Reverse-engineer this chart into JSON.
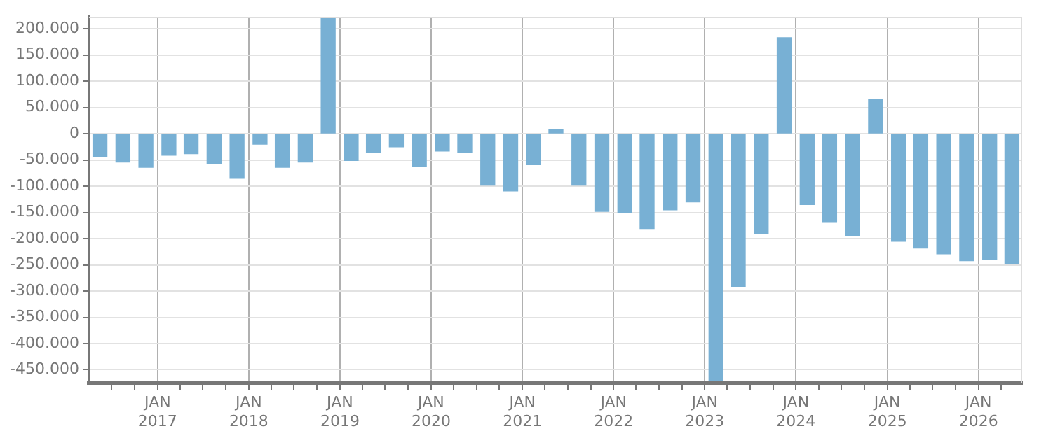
{
  "chart_data": {
    "type": "bar",
    "x": [
      "2016-05-15",
      "2016-08-15",
      "2016-11-15",
      "2017-02-15",
      "2017-05-15",
      "2017-08-15",
      "2017-11-15",
      "2018-02-15",
      "2018-05-15",
      "2018-08-15",
      "2018-11-15",
      "2019-02-15",
      "2019-05-15",
      "2019-08-15",
      "2019-11-15",
      "2020-02-15",
      "2020-05-15",
      "2020-08-15",
      "2020-11-15",
      "2021-02-15",
      "2021-05-15",
      "2021-08-15",
      "2021-11-15",
      "2022-02-15",
      "2022-05-15",
      "2022-08-15",
      "2022-11-15",
      "2023-02-15",
      "2023-05-15",
      "2023-08-15",
      "2023-11-15",
      "2024-02-15",
      "2024-05-15",
      "2024-08-15",
      "2024-11-15",
      "2025-02-15",
      "2025-05-15",
      "2025-08-15",
      "2025-11-15",
      "2026-02-15",
      "2026-05-15"
    ],
    "values": [
      -43000,
      -54000,
      -64000,
      -41000,
      -38000,
      -57000,
      -85000,
      -20000,
      -64000,
      -54000,
      220000,
      -51000,
      -36000,
      -25000,
      -62000,
      -33000,
      -36000,
      -98000,
      -109000,
      -59000,
      8000,
      -98000,
      -148000,
      -150000,
      -182000,
      -145000,
      -130000,
      -470000,
      -291000,
      -190000,
      183000,
      -135000,
      -169000,
      -195000,
      65000,
      -205000,
      -218000,
      -229000,
      -242000,
      -239000,
      -247000
    ],
    "color": "#78b0d4",
    "ylim": [
      -475000,
      223000
    ],
    "yticks": [
      {
        "value": -450000,
        "label": "-450.000"
      },
      {
        "value": -400000,
        "label": "-400.000"
      },
      {
        "value": -350000,
        "label": "-350.000"
      },
      {
        "value": -300000,
        "label": "-300.000"
      },
      {
        "value": -250000,
        "label": "-250.000"
      },
      {
        "value": -200000,
        "label": "-200.000"
      },
      {
        "value": -150000,
        "label": "-150.000"
      },
      {
        "value": -100000,
        "label": "-100.000"
      },
      {
        "value": -50000,
        "label": "-50.000"
      },
      0,
      {
        "value": 50000,
        "label": "50.000"
      },
      {
        "value": 100000,
        "label": "100.000"
      },
      {
        "value": 150000,
        "label": "150.000"
      },
      {
        "value": 200000,
        "label": "200.000"
      }
    ],
    "xlim": [
      "2016-04-01",
      "2026-06-25"
    ],
    "xticks": [
      {
        "value": "2016-07-01",
        "label": null
      },
      {
        "value": "2016-10-01",
        "label": null
      },
      {
        "value": "2017-01-01",
        "label": "JAN 2017"
      },
      {
        "value": "2017-04-01",
        "label": null
      },
      {
        "value": "2017-07-01",
        "label": null
      },
      {
        "value": "2017-10-01",
        "label": null
      },
      {
        "value": "2018-01-01",
        "label": "JAN 2018"
      },
      {
        "value": "2018-04-01",
        "label": null
      },
      {
        "value": "2018-07-01",
        "label": null
      },
      {
        "value": "2018-10-01",
        "label": null
      },
      {
        "value": "2019-01-01",
        "label": "JAN 2019"
      },
      {
        "value": "2019-04-01",
        "label": null
      },
      {
        "value": "2019-07-01",
        "label": null
      },
      {
        "value": "2019-10-01",
        "label": null
      },
      {
        "value": "2020-01-01",
        "label": "JAN 2020"
      },
      {
        "value": "2020-04-01",
        "label": null
      },
      {
        "value": "2020-07-01",
        "label": null
      },
      {
        "value": "2020-10-01",
        "label": null
      },
      {
        "value": "2021-01-01",
        "label": "JAN 2021"
      },
      {
        "value": "2021-04-01",
        "label": null
      },
      {
        "value": "2021-07-01",
        "label": null
      },
      {
        "value": "2021-10-01",
        "label": null
      },
      {
        "value": "2022-01-01",
        "label": "JAN 2022"
      },
      {
        "value": "2022-04-01",
        "label": null
      },
      {
        "value": "2022-07-01",
        "label": null
      },
      {
        "value": "2022-10-01",
        "label": null
      },
      {
        "value": "2023-01-01",
        "label": "JAN 2023"
      },
      {
        "value": "2023-04-01",
        "label": null
      },
      {
        "value": "2023-07-01",
        "label": null
      },
      {
        "value": "2023-10-01",
        "label": null
      },
      {
        "value": "2024-01-01",
        "label": "JAN 2024"
      },
      {
        "value": "2024-04-01",
        "label": null
      },
      {
        "value": "2024-07-01",
        "label": null
      },
      {
        "value": "2024-10-01",
        "label": null
      },
      {
        "value": "2025-01-01",
        "label": "JAN 2025"
      },
      {
        "value": "2025-04-01",
        "label": null
      },
      {
        "value": "2025-07-01",
        "label": null
      },
      {
        "value": "2025-10-01",
        "label": null
      },
      {
        "value": "2026-01-01",
        "label": "JAN 2026"
      },
      {
        "value": "2026-04-01",
        "label": null
      }
    ],
    "grid": true
  }
}
